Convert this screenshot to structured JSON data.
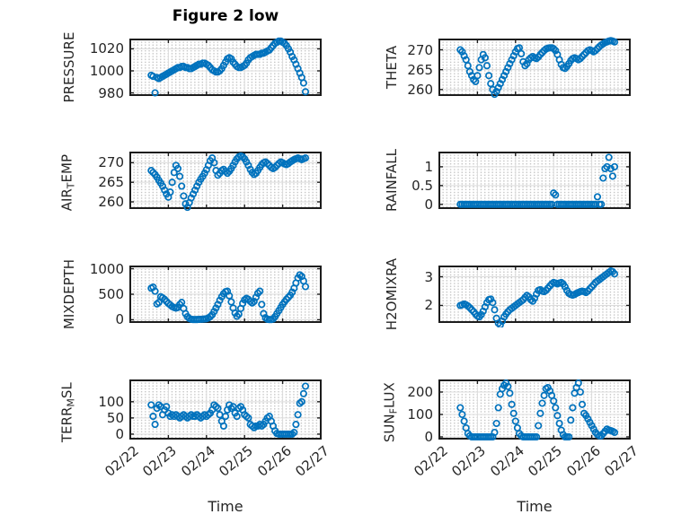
{
  "figure": {
    "title": "Figure 2 low",
    "xlabel": "Time",
    "background": "#ffffff"
  },
  "style": {
    "marker_color": "#0072BD",
    "axis_color": "#1c1c1c",
    "grid_color": "#dcdcdc",
    "minor_dot_color": "#c6c6c6",
    "text_color": "#262626"
  },
  "x_axis": {
    "lim": [
      0,
      5
    ],
    "tick_positions": [
      0,
      1,
      2,
      3,
      4,
      5
    ],
    "tick_labels": [
      "02/22",
      "02/23",
      "02/24",
      "02/25",
      "02/26",
      "02/27"
    ],
    "t_start": 0.55,
    "t_step": 0.05
  },
  "chart_data": [
    {
      "type": "scatter",
      "name": "pressure",
      "row": 0,
      "col": 0,
      "ylabel": "PRESSURE",
      "ylabel_parts": [
        {
          "text": "PRESSURE"
        }
      ],
      "yticks": [
        980,
        1000,
        1020
      ],
      "ytick_labels": [
        "980",
        "1000",
        "1020"
      ],
      "ylim": [
        978,
        1028.5
      ],
      "values": [
        996,
        995,
        980,
        994,
        993,
        994,
        995,
        996,
        997,
        998,
        999,
        1000,
        1001,
        1002,
        1003,
        1003,
        1004,
        1004,
        1003,
        1003,
        1002,
        1002,
        1003,
        1004,
        1005,
        1006,
        1006,
        1007,
        1007,
        1006,
        1005,
        1003,
        1001,
        1000,
        999,
        999,
        1000,
        1002,
        1005,
        1008,
        1011,
        1012,
        1011,
        1008,
        1006,
        1004,
        1003,
        1003,
        1004,
        1005,
        1007,
        1010,
        1012,
        1013,
        1014,
        1015,
        1015,
        1015,
        1016,
        1016,
        1017,
        1018,
        1019,
        1021,
        1023,
        1025,
        1026,
        1027,
        1027,
        1026,
        1025,
        1023,
        1020,
        1017,
        1013,
        1010,
        1006,
        1002,
        998,
        994,
        989,
        981
      ]
    },
    {
      "type": "scatter",
      "name": "theta",
      "row": 0,
      "col": 1,
      "ylabel": "THETA",
      "ylabel_parts": [
        {
          "text": "THETA"
        }
      ],
      "yticks": [
        260,
        265,
        270
      ],
      "ytick_labels": [
        "260",
        "265",
        "270"
      ],
      "ylim": [
        258.6,
        272.6
      ],
      "values": [
        270,
        269.5,
        268.5,
        267.5,
        266,
        264.5,
        263.5,
        262.5,
        262,
        263.5,
        265.5,
        267.5,
        268.8,
        268,
        266,
        263.5,
        261.5,
        260,
        258.8,
        259.5,
        260.5,
        261.5,
        262.5,
        263.5,
        264.5,
        265.5,
        266.5,
        267.5,
        268.5,
        269.5,
        270.3,
        270.5,
        269,
        267,
        266,
        266.5,
        267.5,
        268,
        268.3,
        268,
        267.8,
        268.2,
        268.8,
        269.3,
        269.8,
        270.2,
        270.4,
        270.5,
        270.5,
        270.3,
        269.8,
        268.8,
        267.5,
        266.3,
        265.5,
        265.3,
        265.8,
        266.5,
        267.3,
        267.8,
        268,
        267.8,
        267.5,
        267.8,
        268.3,
        268.8,
        269.3,
        269.8,
        270,
        269.8,
        269.5,
        269.8,
        270.3,
        270.8,
        271.2,
        271.5,
        271.8,
        272,
        272.2,
        272.3,
        272.2,
        272
      ]
    },
    {
      "type": "scatter",
      "name": "air-temp",
      "row": 1,
      "col": 0,
      "ylabel": "AIR_TEMP",
      "ylabel_parts": [
        {
          "text": "AIR"
        },
        {
          "text": "T",
          "sub": true
        },
        {
          "text": "EMP"
        }
      ],
      "yticks": [
        260,
        265,
        270
      ],
      "ytick_labels": [
        "260",
        "265",
        "270"
      ],
      "ylim": [
        258.4,
        272.6
      ],
      "values": [
        268,
        267.5,
        267,
        266.3,
        265.5,
        264.8,
        264,
        263,
        262,
        261.2,
        262.5,
        265,
        267.5,
        269.3,
        268.5,
        266.5,
        264,
        261.5,
        259.5,
        258.6,
        259.8,
        261,
        262,
        263,
        264,
        265,
        265.8,
        266.5,
        267.3,
        268.2,
        269.3,
        270.5,
        271.2,
        270,
        268,
        266.8,
        267.3,
        268,
        268.3,
        267.8,
        267.3,
        267.8,
        268.5,
        269.3,
        270.2,
        271,
        271.5,
        271.7,
        271.5,
        271,
        270.2,
        269.3,
        268.3,
        267.5,
        267,
        267.3,
        268,
        268.8,
        269.5,
        270,
        270.2,
        269.8,
        269.3,
        268.8,
        268.5,
        268.8,
        269.3,
        269.8,
        270.2,
        270,
        269.7,
        269.5,
        269.8,
        270.2,
        270.5,
        270.8,
        271,
        271.2,
        271,
        270.8,
        271,
        271.2
      ]
    },
    {
      "type": "scatter",
      "name": "rainfall",
      "row": 1,
      "col": 1,
      "ylabel": "RAINFALL",
      "ylabel_parts": [
        {
          "text": "RAINFALL"
        }
      ],
      "yticks": [
        0,
        0.5,
        1
      ],
      "ytick_labels": [
        "0",
        "0.5",
        "1"
      ],
      "ylim": [
        -0.1,
        1.38
      ],
      "values": [
        0,
        0,
        0,
        0,
        0,
        0,
        0,
        0,
        0,
        0,
        0,
        0,
        0,
        0,
        0,
        0,
        0,
        0,
        0,
        0,
        0,
        0,
        0,
        0,
        0,
        0,
        0,
        0,
        0,
        0,
        0,
        0,
        0,
        0,
        0,
        0,
        0,
        0,
        0,
        0,
        0,
        0,
        0,
        0,
        0,
        0,
        0,
        0,
        0,
        0.3,
        0.25,
        0,
        0,
        0,
        0,
        0,
        0,
        0,
        0,
        0,
        0,
        0,
        0,
        0,
        0,
        0,
        0,
        0,
        0,
        0,
        0,
        0,
        0.2,
        0,
        0,
        0.7,
        0.95,
        1,
        1.25,
        0.95,
        0.75,
        1
      ]
    },
    {
      "type": "scatter",
      "name": "mixdepth",
      "row": 2,
      "col": 0,
      "ylabel": "MIXDEPTH",
      "ylabel_parts": [
        {
          "text": "MIXDEPTH"
        }
      ],
      "yticks": [
        0,
        500,
        1000
      ],
      "ytick_labels": [
        "0",
        "500",
        "1000"
      ],
      "ylim": [
        -45,
        1045
      ],
      "values": [
        620,
        640,
        560,
        310,
        340,
        450,
        430,
        400,
        360,
        320,
        290,
        260,
        240,
        230,
        240,
        300,
        340,
        220,
        120,
        60,
        25,
        10,
        5,
        5,
        5,
        8,
        10,
        12,
        15,
        20,
        35,
        60,
        100,
        160,
        230,
        300,
        380,
        450,
        510,
        550,
        560,
        470,
        350,
        230,
        130,
        70,
        110,
        220,
        320,
        390,
        420,
        400,
        360,
        330,
        360,
        440,
        520,
        560,
        300,
        120,
        40,
        10,
        5,
        5,
        15,
        60,
        120,
        180,
        240,
        300,
        350,
        400,
        440,
        480,
        540,
        620,
        720,
        820,
        880,
        850,
        760,
        650
      ]
    },
    {
      "type": "scatter",
      "name": "h2omixra",
      "row": 2,
      "col": 1,
      "ylabel": "H2OMIXRA",
      "ylabel_parts": [
        {
          "text": "H2OMIXRA"
        }
      ],
      "yticks": [
        2,
        3
      ],
      "ytick_labels": [
        "2",
        "3"
      ],
      "ylim": [
        1.42,
        3.36
      ],
      "values": [
        2,
        2.02,
        2.05,
        2.02,
        1.98,
        1.92,
        1.85,
        1.78,
        1.7,
        1.63,
        1.6,
        1.68,
        1.8,
        1.95,
        2.1,
        2.2,
        2.22,
        2.1,
        1.85,
        1.55,
        1.38,
        1.32,
        1.45,
        1.6,
        1.7,
        1.78,
        1.85,
        1.9,
        1.95,
        2,
        2.05,
        2.1,
        2.15,
        2.2,
        2.28,
        2.35,
        2.3,
        2.2,
        2.15,
        2.25,
        2.4,
        2.52,
        2.55,
        2.5,
        2.48,
        2.52,
        2.6,
        2.68,
        2.75,
        2.8,
        2.78,
        2.75,
        2.78,
        2.8,
        2.75,
        2.65,
        2.52,
        2.42,
        2.38,
        2.36,
        2.38,
        2.42,
        2.45,
        2.48,
        2.5,
        2.48,
        2.45,
        2.5,
        2.58,
        2.65,
        2.72,
        2.8,
        2.85,
        2.9,
        2.95,
        3,
        3.05,
        3.1,
        3.15,
        3.2,
        3.18,
        3.1
      ]
    },
    {
      "type": "scatter",
      "name": "terr-msl",
      "row": 3,
      "col": 0,
      "ylabel": "TERR_MSL",
      "ylabel_parts": [
        {
          "text": "TERR"
        },
        {
          "text": "M",
          "sub": true
        },
        {
          "text": "SL"
        }
      ],
      "yticks": [
        0,
        50,
        100
      ],
      "ytick_labels": [
        "0",
        "50",
        "100"
      ],
      "ylim": [
        -14,
        166
      ],
      "values": [
        90,
        55,
        30,
        80,
        90,
        85,
        60,
        75,
        85,
        65,
        55,
        60,
        55,
        60,
        55,
        50,
        55,
        60,
        55,
        50,
        55,
        60,
        55,
        55,
        60,
        55,
        50,
        55,
        60,
        55,
        60,
        65,
        75,
        90,
        85,
        80,
        60,
        40,
        25,
        55,
        75,
        90,
        80,
        85,
        65,
        55,
        80,
        85,
        75,
        60,
        55,
        50,
        30,
        25,
        20,
        25,
        25,
        30,
        25,
        30,
        40,
        50,
        55,
        40,
        25,
        10,
        2,
        0,
        0,
        0,
        0,
        0,
        0,
        0,
        0,
        5,
        30,
        60,
        95,
        100,
        125,
        148
      ]
    },
    {
      "type": "scatter",
      "name": "sun-flux",
      "row": 3,
      "col": 1,
      "ylabel": "SUN_FLUX",
      "ylabel_parts": [
        {
          "text": "SUN"
        },
        {
          "text": "F",
          "sub": true
        },
        {
          "text": "LUX"
        }
      ],
      "yticks": [
        0,
        100,
        200
      ],
      "ytick_labels": [
        "0",
        "100",
        "200"
      ],
      "ylim": [
        -8,
        252
      ],
      "values": [
        130,
        100,
        70,
        40,
        15,
        5,
        0,
        0,
        0,
        0,
        0,
        0,
        0,
        0,
        0,
        0,
        0,
        0,
        20,
        60,
        130,
        190,
        215,
        230,
        240,
        225,
        195,
        145,
        105,
        70,
        40,
        15,
        5,
        0,
        0,
        0,
        0,
        0,
        0,
        0,
        0,
        50,
        105,
        150,
        185,
        215,
        220,
        205,
        185,
        160,
        130,
        95,
        60,
        30,
        10,
        0,
        0,
        0,
        75,
        130,
        195,
        220,
        240,
        200,
        145,
        105,
        95,
        80,
        65,
        50,
        35,
        20,
        10,
        5,
        5,
        15,
        25,
        35,
        30,
        28,
        25,
        20
      ]
    }
  ]
}
